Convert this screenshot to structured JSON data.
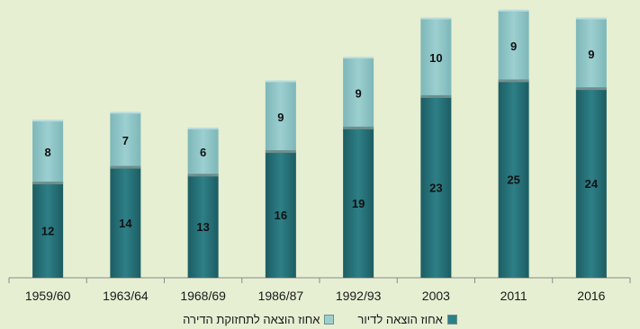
{
  "chart_data": {
    "type": "bar",
    "stacked": true,
    "categories": [
      "1959/60",
      "1963/64",
      "1968/69",
      "1986/87",
      "1992/93",
      "2003",
      "2011",
      "2016"
    ],
    "series": [
      {
        "name": "אחוז הוצאה לדיור",
        "values": [
          12,
          14,
          13,
          16,
          19,
          23,
          25,
          24
        ],
        "color": "#2e7f87"
      },
      {
        "name": "אחוז הוצאה לתחזוקת הדירה",
        "values": [
          8,
          7,
          6,
          9,
          9,
          10,
          9,
          9
        ],
        "color": "#9ccfd0"
      }
    ],
    "ylim": [
      0,
      35
    ],
    "grid": false,
    "legend_position": "bottom"
  }
}
